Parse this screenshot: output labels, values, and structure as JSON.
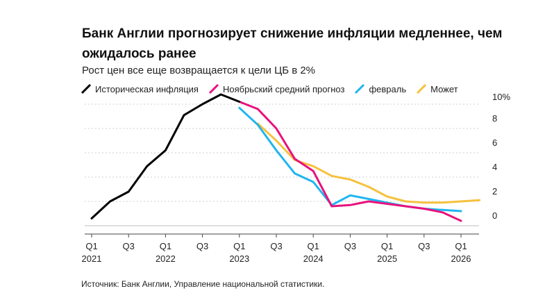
{
  "title": "Банк Англии прогнозирует снижение инфляции медленнее, чем ожидалось ранее",
  "subtitle": "Рост цен все еще возвращается к цели ЦБ в 2%",
  "source": "Источник: Банк Англии, Управление национальной статистики.",
  "chart_data": {
    "type": "line",
    "title": "Банк Англии прогнозирует снижение инфляции медленнее, чем ожидалось ранее",
    "subtitle": "Рост цен все еще возвращается к цели ЦБ в 2%",
    "x_unit": "quarter",
    "x_range": [
      "2021 Q1",
      "2026 Q3"
    ],
    "ylim": [
      0,
      10
    ],
    "yticks": [
      {
        "value": 10,
        "label": "10%"
      },
      {
        "value": 8,
        "label": "8"
      },
      {
        "value": 6,
        "label": "6"
      },
      {
        "value": 4,
        "label": "4"
      },
      {
        "value": 2,
        "label": "2"
      },
      {
        "value": 0,
        "label": "0"
      }
    ],
    "xticks": [
      {
        "q": 0,
        "label": "Q1",
        "year": "2021"
      },
      {
        "q": 2,
        "label": "Q3",
        "year": ""
      },
      {
        "q": 4,
        "label": "Q1",
        "year": "2022"
      },
      {
        "q": 6,
        "label": "Q3",
        "year": ""
      },
      {
        "q": 8,
        "label": "Q1",
        "year": "2023"
      },
      {
        "q": 10,
        "label": "Q3",
        "year": ""
      },
      {
        "q": 12,
        "label": "Q1",
        "year": "2024"
      },
      {
        "q": 14,
        "label": "Q3",
        "year": ""
      },
      {
        "q": 16,
        "label": "Q1",
        "year": "2025"
      },
      {
        "q": 18,
        "label": "Q3",
        "year": ""
      },
      {
        "q": 20,
        "label": "Q1",
        "year": "2026"
      }
    ],
    "series": [
      {
        "name": "Историческая инфляция",
        "color": "#000000",
        "points": [
          [
            0,
            0.6
          ],
          [
            1,
            2.0
          ],
          [
            2,
            2.8
          ],
          [
            3,
            4.9
          ],
          [
            4,
            6.2
          ],
          [
            5,
            9.1
          ],
          [
            6,
            10.0
          ],
          [
            7,
            10.8
          ],
          [
            8,
            10.2
          ]
        ]
      },
      {
        "name": "Ноябрьский средний прогноз",
        "color": "#e8127c",
        "points": [
          [
            8,
            10.2
          ],
          [
            9,
            9.6
          ],
          [
            10,
            8.0
          ],
          [
            11,
            5.5
          ],
          [
            12,
            4.5
          ],
          [
            13,
            1.6
          ],
          [
            14,
            1.7
          ],
          [
            15,
            2.0
          ],
          [
            16,
            1.8
          ],
          [
            17,
            1.6
          ],
          [
            18,
            1.4
          ],
          [
            19,
            1.1
          ],
          [
            20,
            0.4
          ]
        ]
      },
      {
        "name": "февраль",
        "color": "#1fb5ef",
        "points": [
          [
            8,
            9.7
          ],
          [
            9,
            8.3
          ],
          [
            10,
            6.2
          ],
          [
            11,
            4.3
          ],
          [
            12,
            3.6
          ],
          [
            13,
            1.7
          ],
          [
            14,
            2.5
          ],
          [
            15,
            2.2
          ],
          [
            16,
            1.9
          ],
          [
            17,
            1.6
          ],
          [
            18,
            1.4
          ],
          [
            19,
            1.3
          ],
          [
            20,
            1.2
          ]
        ]
      },
      {
        "name": "Может",
        "color": "#f6c13d",
        "points": [
          [
            9,
            8.4
          ],
          [
            10,
            7.0
          ],
          [
            11,
            5.4
          ],
          [
            12,
            4.9
          ],
          [
            13,
            4.1
          ],
          [
            14,
            3.8
          ],
          [
            15,
            3.2
          ],
          [
            16,
            2.4
          ],
          [
            17,
            2.0
          ],
          [
            18,
            1.9
          ],
          [
            19,
            1.9
          ],
          [
            20,
            2.0
          ],
          [
            21,
            2.1
          ]
        ]
      }
    ]
  }
}
